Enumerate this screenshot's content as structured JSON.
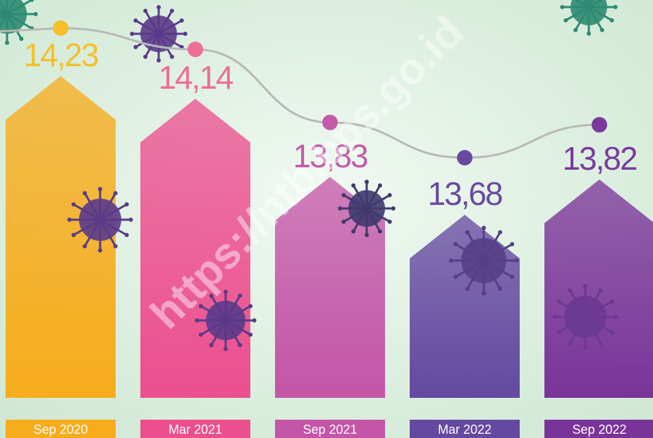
{
  "chart_data": {
    "type": "bar",
    "categories": [
      "Sep 2020",
      "Mar 2021",
      "Sep 2021",
      "Mar 2022",
      "Sep 2022"
    ],
    "values": [
      14.23,
      14.14,
      13.83,
      13.68,
      13.82
    ],
    "value_labels": [
      "14,23",
      "14,14",
      "13,83",
      "13,68",
      "13,82"
    ],
    "colors": [
      "#f7ac1c",
      "#ec4f8e",
      "#c455a8",
      "#6449a0",
      "#7a3499"
    ],
    "label_colors": [
      "#f5c02a",
      "#ee6e98",
      "#c65aaa",
      "#6a4aa0",
      "#7a3a9c"
    ]
  },
  "watermark": "https://ntb.bps.go.id"
}
